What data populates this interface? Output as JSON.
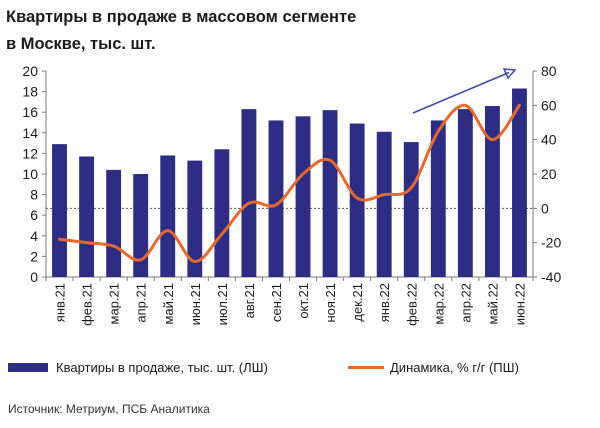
{
  "title_line1": "Квартиры в продаже в массовом сегменте",
  "title_line2": "в Москве, тыс. шт.",
  "source": "Источник: Метриум, ПСБ Аналитика",
  "colors": {
    "bar": "#2e2d86",
    "line": "#e8692a",
    "trend_arrow": "#3f4aa8"
  },
  "chart_data": {
    "type": "bar",
    "categories": [
      "янв.21",
      "фев.21",
      "мар.21",
      "апр.21",
      "май.21",
      "июн.21",
      "июл.21",
      "авг.21",
      "сен.21",
      "окт.21",
      "ноя.21",
      "дек.21",
      "янв.22",
      "фев.22",
      "мар.22",
      "апр.22",
      "май.22",
      "июн.22"
    ],
    "series": [
      {
        "name": "Квартиры в продаже, тыс. шт. (ЛШ)",
        "type": "bar",
        "axis": "left",
        "values": [
          12.9,
          11.7,
          10.4,
          10.0,
          11.8,
          11.3,
          12.4,
          16.3,
          15.2,
          15.6,
          16.2,
          14.9,
          14.1,
          13.1,
          15.2,
          16.3,
          16.6,
          18.3
        ]
      },
      {
        "name": "Динамика, % г/г (ПШ)",
        "type": "line",
        "axis": "right",
        "values": [
          -18,
          -20,
          -22,
          -30,
          -13,
          -31,
          -15,
          3,
          2,
          20,
          28,
          6,
          8,
          12,
          45,
          60,
          40,
          60
        ]
      }
    ],
    "y_left": {
      "min": 0,
      "max": 20,
      "ticks": [
        0,
        2,
        4,
        6,
        8,
        10,
        12,
        14,
        16,
        18,
        20
      ]
    },
    "y_right": {
      "min": -40,
      "max": 80,
      "ticks": [
        -40,
        -20,
        0,
        20,
        40,
        60,
        80
      ]
    },
    "legend_position": "bottom",
    "grid": false,
    "zero_line_right": "dashed"
  }
}
